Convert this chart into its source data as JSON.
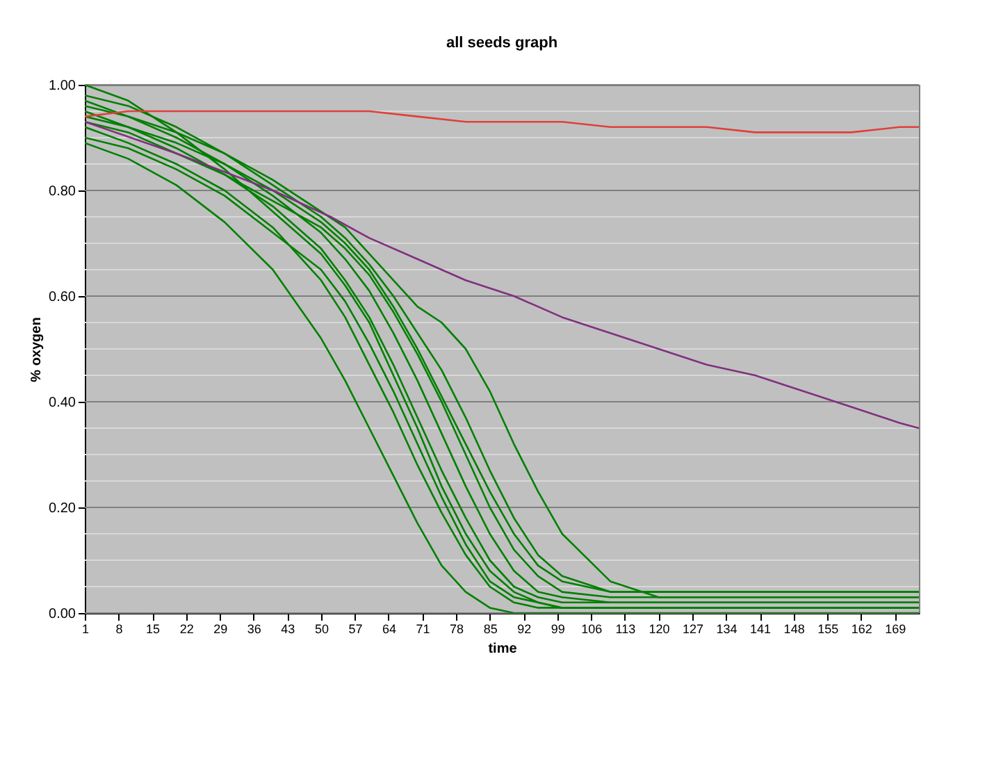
{
  "chart_data": {
    "type": "line",
    "title": "all seeds graph",
    "xlabel": "time",
    "ylabel": "% oxygen",
    "xlim": [
      1,
      174
    ],
    "xticks": [
      1,
      8,
      15,
      22,
      29,
      36,
      43,
      50,
      57,
      64,
      71,
      78,
      85,
      92,
      99,
      106,
      113,
      120,
      127,
      134,
      141,
      148,
      155,
      162,
      169
    ],
    "ylim": [
      0,
      1
    ],
    "yticks": [
      {
        "value": 0,
        "label": "0.00"
      },
      {
        "value": 0.05,
        "label": null
      },
      {
        "value": 0.1,
        "label": null
      },
      {
        "value": 0.15,
        "label": null
      },
      {
        "value": 0.2,
        "label": "0.20"
      },
      {
        "value": 0.25,
        "label": null
      },
      {
        "value": 0.3,
        "label": null
      },
      {
        "value": 0.35,
        "label": null
      },
      {
        "value": 0.4,
        "label": "0.40"
      },
      {
        "value": 0.45,
        "label": null
      },
      {
        "value": 0.5,
        "label": null
      },
      {
        "value": 0.55,
        "label": null
      },
      {
        "value": 0.6,
        "label": "0.60"
      },
      {
        "value": 0.65,
        "label": null
      },
      {
        "value": 0.7,
        "label": null
      },
      {
        "value": 0.75,
        "label": null
      },
      {
        "value": 0.8,
        "label": "0.80"
      },
      {
        "value": 0.85,
        "label": null
      },
      {
        "value": 0.9,
        "label": null
      },
      {
        "value": 0.95,
        "label": null
      },
      {
        "value": 1,
        "label": "1.00"
      }
    ],
    "grid": "y",
    "marker": "none",
    "line_style": "solid",
    "x": [
      1,
      10,
      20,
      30,
      40,
      50,
      55,
      60,
      65,
      70,
      75,
      80,
      85,
      90,
      95,
      100,
      110,
      120,
      140,
      160,
      174
    ],
    "series": [
      {
        "color": "#008000",
        "values": [
          0.89,
          0.86,
          0.81,
          0.74,
          0.65,
          0.52,
          0.44,
          0.35,
          0.26,
          0.17,
          0.09,
          0.04,
          0.01,
          0.0,
          0.0,
          0.0,
          0.0,
          0.0,
          0.0,
          0.0,
          0.0
        ]
      },
      {
        "color": "#008000",
        "values": [
          0.92,
          0.89,
          0.85,
          0.8,
          0.73,
          0.63,
          0.56,
          0.47,
          0.38,
          0.28,
          0.19,
          0.11,
          0.05,
          0.02,
          0.01,
          0.01,
          0.01,
          0.01,
          0.01,
          0.01,
          0.01
        ]
      },
      {
        "color": "#008000",
        "values": [
          0.95,
          0.92,
          0.88,
          0.83,
          0.77,
          0.69,
          0.63,
          0.56,
          0.47,
          0.37,
          0.27,
          0.18,
          0.1,
          0.05,
          0.03,
          0.02,
          0.02,
          0.02,
          0.02,
          0.02,
          0.02
        ]
      },
      {
        "color": "#008000",
        "values": [
          0.97,
          0.94,
          0.9,
          0.85,
          0.79,
          0.72,
          0.67,
          0.61,
          0.53,
          0.44,
          0.34,
          0.24,
          0.15,
          0.08,
          0.04,
          0.03,
          0.02,
          0.02,
          0.02,
          0.02,
          0.02
        ]
      },
      {
        "color": "#008000",
        "values": [
          0.93,
          0.91,
          0.87,
          0.83,
          0.78,
          0.73,
          0.69,
          0.64,
          0.57,
          0.49,
          0.4,
          0.3,
          0.2,
          0.12,
          0.07,
          0.04,
          0.03,
          0.03,
          0.03,
          0.03,
          0.03
        ]
      },
      {
        "color": "#008000",
        "values": [
          0.98,
          0.96,
          0.92,
          0.87,
          0.81,
          0.75,
          0.71,
          0.66,
          0.6,
          0.53,
          0.46,
          0.37,
          0.27,
          0.18,
          0.11,
          0.07,
          0.04,
          0.04,
          0.04,
          0.04,
          0.04
        ]
      },
      {
        "color": "#008000",
        "values": [
          0.96,
          0.94,
          0.91,
          0.87,
          0.82,
          0.76,
          0.73,
          0.68,
          0.63,
          0.58,
          0.55,
          0.5,
          0.42,
          0.32,
          0.23,
          0.15,
          0.06,
          0.03,
          0.03,
          0.03,
          0.03
        ]
      },
      {
        "color": "#008000",
        "values": [
          0.9,
          0.88,
          0.84,
          0.79,
          0.72,
          0.65,
          0.59,
          0.51,
          0.42,
          0.32,
          0.22,
          0.13,
          0.06,
          0.03,
          0.02,
          0.01,
          0.01,
          0.01,
          0.01,
          0.01,
          0.01
        ]
      },
      {
        "color": "#008000",
        "values": [
          1.0,
          0.97,
          0.91,
          0.84,
          0.76,
          0.68,
          0.62,
          0.55,
          0.45,
          0.35,
          0.24,
          0.15,
          0.08,
          0.04,
          0.02,
          0.01,
          0.01,
          0.01,
          0.01,
          0.01,
          0.01
        ]
      },
      {
        "color": "#008000",
        "values": [
          0.94,
          0.92,
          0.89,
          0.85,
          0.8,
          0.74,
          0.7,
          0.65,
          0.58,
          0.5,
          0.41,
          0.32,
          0.23,
          0.15,
          0.09,
          0.06,
          0.04,
          0.04,
          0.04,
          0.04,
          0.04
        ]
      },
      {
        "color": "#80307f",
        "x": [
          1,
          20,
          40,
          52,
          60,
          70,
          80,
          90,
          100,
          110,
          120,
          130,
          140,
          150,
          160,
          170,
          174
        ],
        "values": [
          0.93,
          0.87,
          0.8,
          0.75,
          0.71,
          0.67,
          0.63,
          0.6,
          0.56,
          0.53,
          0.5,
          0.47,
          0.45,
          0.42,
          0.39,
          0.36,
          0.35
        ]
      },
      {
        "color": "#e0403a",
        "x": [
          1,
          10,
          20,
          30,
          40,
          50,
          60,
          70,
          80,
          90,
          100,
          110,
          120,
          130,
          140,
          150,
          160,
          170,
          174
        ],
        "values": [
          0.94,
          0.95,
          0.95,
          0.95,
          0.95,
          0.95,
          0.95,
          0.94,
          0.93,
          0.93,
          0.93,
          0.92,
          0.92,
          0.92,
          0.91,
          0.91,
          0.91,
          0.92,
          0.92
        ]
      }
    ]
  }
}
